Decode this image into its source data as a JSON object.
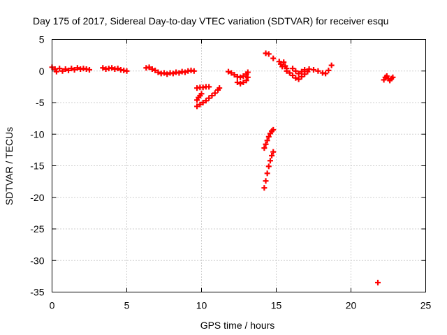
{
  "chart_data": {
    "type": "scatter",
    "title": "Day 175 of 2017, Sidereal Day-to-day VTEC variation (SDTVAR) for receiver esqu",
    "xlabel": "GPS time / hours",
    "ylabel": "SDTVAR / TECUs",
    "xlim": [
      0,
      25
    ],
    "ylim": [
      -35,
      5
    ],
    "xticks": [
      0,
      5,
      10,
      15,
      20,
      25
    ],
    "yticks": [
      5,
      0,
      -5,
      -10,
      -15,
      -20,
      -25,
      -30,
      -35
    ],
    "grid": true,
    "marker_color": "#ff0000",
    "series": [
      {
        "name": "SDTVAR",
        "points": [
          [
            0.0,
            0.6
          ],
          [
            0.2,
            0.3
          ],
          [
            0.3,
            -0.1
          ],
          [
            0.5,
            0.4
          ],
          [
            0.7,
            0.0
          ],
          [
            0.9,
            0.3
          ],
          [
            1.1,
            0.1
          ],
          [
            1.3,
            0.4
          ],
          [
            1.5,
            0.2
          ],
          [
            1.7,
            0.5
          ],
          [
            1.9,
            0.3
          ],
          [
            2.1,
            0.4
          ],
          [
            2.3,
            0.3
          ],
          [
            2.5,
            0.2
          ],
          [
            3.4,
            0.5
          ],
          [
            3.6,
            0.3
          ],
          [
            3.8,
            0.4
          ],
          [
            4.0,
            0.5
          ],
          [
            4.2,
            0.3
          ],
          [
            4.4,
            0.4
          ],
          [
            4.6,
            0.2
          ],
          [
            4.8,
            0.1
          ],
          [
            5.0,
            0.0
          ],
          [
            6.3,
            0.5
          ],
          [
            6.5,
            0.6
          ],
          [
            6.7,
            0.3
          ],
          [
            6.9,
            0.1
          ],
          [
            7.1,
            -0.2
          ],
          [
            7.3,
            -0.4
          ],
          [
            7.5,
            -0.3
          ],
          [
            7.7,
            -0.5
          ],
          [
            7.9,
            -0.3
          ],
          [
            8.1,
            -0.4
          ],
          [
            8.3,
            -0.2
          ],
          [
            8.5,
            -0.3
          ],
          [
            8.7,
            -0.1
          ],
          [
            8.9,
            -0.2
          ],
          [
            9.1,
            0.0
          ],
          [
            9.3,
            0.1
          ],
          [
            9.5,
            0.0
          ],
          [
            9.7,
            -2.7
          ],
          [
            9.9,
            -2.6
          ],
          [
            10.1,
            -2.6
          ],
          [
            10.3,
            -2.5
          ],
          [
            10.5,
            -2.5
          ],
          [
            9.7,
            -4.6
          ],
          [
            9.8,
            -4.2
          ],
          [
            9.9,
            -3.9
          ],
          [
            10.0,
            -3.6
          ],
          [
            9.7,
            -5.6
          ],
          [
            9.9,
            -5.3
          ],
          [
            10.1,
            -5.0
          ],
          [
            10.3,
            -4.7
          ],
          [
            10.5,
            -4.3
          ],
          [
            10.7,
            -3.9
          ],
          [
            10.9,
            -3.5
          ],
          [
            11.1,
            -3.0
          ],
          [
            11.2,
            -2.7
          ],
          [
            11.8,
            -0.1
          ],
          [
            12.0,
            -0.3
          ],
          [
            12.2,
            -0.6
          ],
          [
            12.4,
            -0.9
          ],
          [
            12.6,
            -1.0
          ],
          [
            12.8,
            -0.8
          ],
          [
            13.0,
            -0.5
          ],
          [
            13.1,
            -0.2
          ],
          [
            12.4,
            -1.8
          ],
          [
            12.6,
            -2.0
          ],
          [
            12.8,
            -1.8
          ],
          [
            13.0,
            -1.5
          ],
          [
            13.1,
            -1.0
          ],
          [
            14.3,
            2.8
          ],
          [
            14.5,
            2.7
          ],
          [
            14.8,
            2.0
          ],
          [
            14.2,
            -12.2
          ],
          [
            14.3,
            -11.6
          ],
          [
            14.4,
            -11.0
          ],
          [
            14.5,
            -10.4
          ],
          [
            14.6,
            -9.9
          ],
          [
            14.7,
            -9.5
          ],
          [
            14.8,
            -9.3
          ],
          [
            14.2,
            -18.5
          ],
          [
            14.3,
            -17.4
          ],
          [
            14.4,
            -16.2
          ],
          [
            14.5,
            -15.1
          ],
          [
            14.6,
            -14.2
          ],
          [
            14.7,
            -13.4
          ],
          [
            14.8,
            -12.8
          ],
          [
            15.2,
            1.5
          ],
          [
            15.3,
            1.1
          ],
          [
            15.4,
            0.7
          ],
          [
            15.5,
            1.4
          ],
          [
            15.6,
            0.8
          ],
          [
            15.7,
            0.4
          ],
          [
            15.7,
            0.0
          ],
          [
            15.9,
            -0.3
          ],
          [
            16.1,
            -0.7
          ],
          [
            16.3,
            -1.1
          ],
          [
            16.5,
            -1.3
          ],
          [
            16.7,
            -0.9
          ],
          [
            16.9,
            -0.5
          ],
          [
            17.1,
            -0.1
          ],
          [
            16.1,
            0.4
          ],
          [
            16.3,
            0.0
          ],
          [
            16.5,
            -0.4
          ],
          [
            16.7,
            -0.1
          ],
          [
            16.9,
            0.2
          ],
          [
            17.2,
            0.3
          ],
          [
            17.5,
            0.2
          ],
          [
            17.8,
            0.0
          ],
          [
            18.1,
            -0.3
          ],
          [
            18.3,
            -0.4
          ],
          [
            18.5,
            0.1
          ],
          [
            18.7,
            0.9
          ],
          [
            21.8,
            -33.5
          ],
          [
            22.2,
            -1.4
          ],
          [
            22.3,
            -1.0
          ],
          [
            22.4,
            -0.8
          ],
          [
            22.5,
            -1.2
          ],
          [
            22.6,
            -1.5
          ],
          [
            22.7,
            -1.2
          ],
          [
            22.8,
            -1.0
          ]
        ]
      }
    ]
  }
}
